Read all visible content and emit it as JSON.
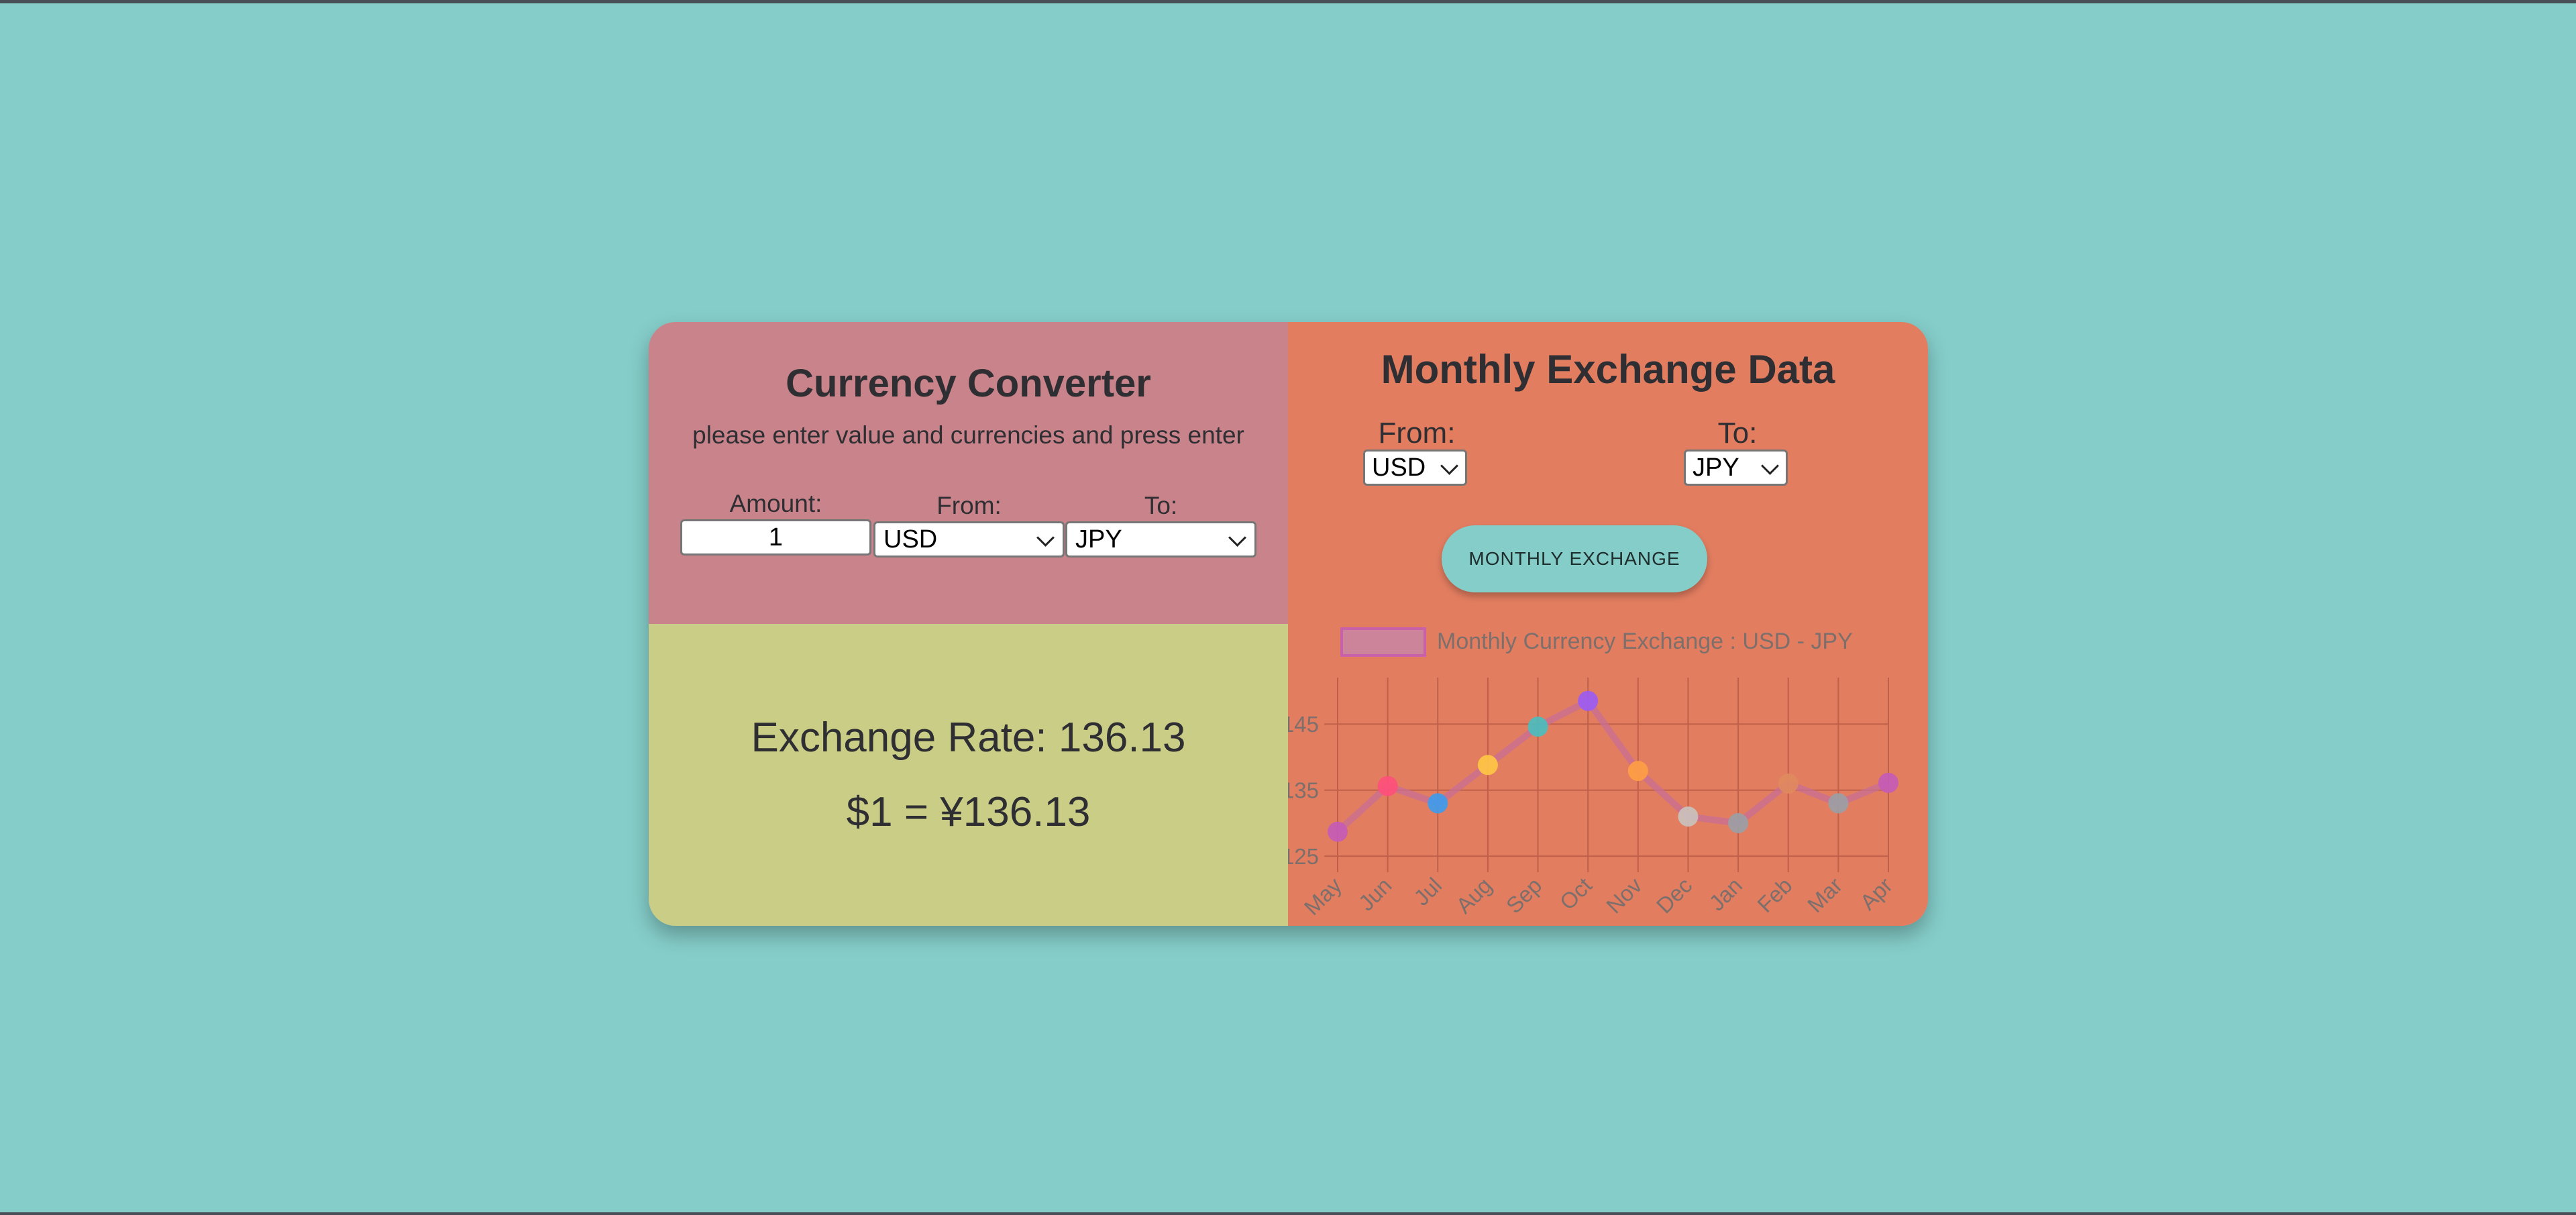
{
  "converter": {
    "title": "Currency Converter",
    "subtitle": "please enter value and currencies and press enter",
    "amount_label": "Amount:",
    "amount_value": "1",
    "from_label": "From:",
    "from_value": "USD",
    "to_label": "To:",
    "to_value": "JPY"
  },
  "result": {
    "rate_text": "Exchange Rate: 136.13",
    "conversion_text": "$1 = ¥136.13"
  },
  "monthly": {
    "title": "Monthly Exchange Data",
    "from_label": "From:",
    "from_value": "USD",
    "to_label": "To:",
    "to_value": "JPY",
    "button_label": "MONTHLY EXCHANGE"
  },
  "chart_data": {
    "type": "line",
    "legend": "Monthly Currency Exchange : USD - JPY",
    "categories": [
      "May",
      "Jun",
      "Jul",
      "Aug",
      "Sep",
      "Oct",
      "Nov",
      "Dec",
      "Jan",
      "Feb",
      "Mar",
      "Apr"
    ],
    "values": [
      128.7,
      135.6,
      133.0,
      138.8,
      144.6,
      148.5,
      137.9,
      131.0,
      130.0,
      136.0,
      133.0,
      136.1
    ],
    "yticks": [
      125,
      135,
      145
    ],
    "ylim": [
      124,
      150
    ],
    "point_colors": [
      "#c45bb8",
      "#ff4f7b",
      "#3b9cf0",
      "#ffc844",
      "#48bfc0",
      "#9b5cf5",
      "#ffa044",
      "#c9c3c0",
      "#9aa0a6",
      "#e08a5e",
      "#9aa0a6",
      "#c45bb8"
    ],
    "line_color": "#c86f96",
    "grid_color": "#c0604a",
    "label_color": "#7d6f6c"
  }
}
